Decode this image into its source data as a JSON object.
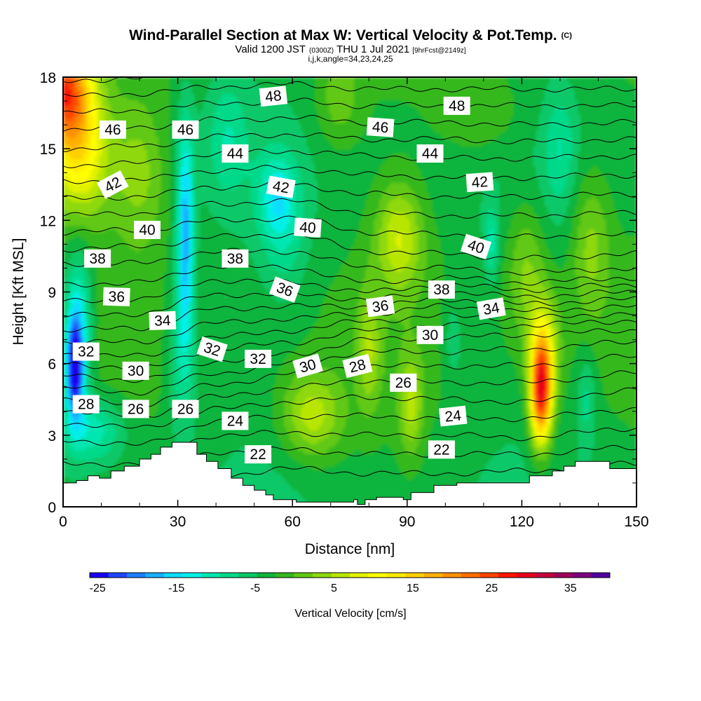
{
  "figure": {
    "title": "Wind-Parallel Section at Max W: Vertical Velocity & Pot.Temp.",
    "title_mark": "(C)",
    "valid_prefix": "Valid 1200 JST",
    "valid_utc": "(0300Z)",
    "valid_date": "THU 1 Jul 2021",
    "forecast_tag": "[9hrFcst@2149z]",
    "index_line": "i,j,k,angle=34,23,24,25"
  },
  "chart_data": {
    "type": "heatmap",
    "title": "Wind-Parallel Section at Max W: Vertical Velocity & Pot.Temp.",
    "xlabel": "Distance [nm]",
    "ylabel": "Height [Kft MSL]",
    "xlim": [
      0,
      150
    ],
    "ylim": [
      0,
      18
    ],
    "x_ticks": [
      0,
      30,
      60,
      90,
      120,
      150
    ],
    "x_tick_labels": [
      "0",
      "30",
      "60",
      "90",
      "120",
      "150"
    ],
    "y_ticks": [
      0,
      3,
      6,
      9,
      12,
      15,
      18
    ],
    "y_tick_labels": [
      "0",
      "3",
      "6",
      "9",
      "12",
      "15",
      "18"
    ],
    "grid": false,
    "colorbar": {
      "title": "Vertical Velocity [cm/s]",
      "placement": "bottom",
      "min": -26,
      "max": 40,
      "step": 3,
      "tick_values": [
        -25,
        -15,
        -5,
        5,
        15,
        25,
        35
      ],
      "tick_labels": [
        "-25",
        "-15",
        "-5",
        "5",
        "15",
        "25",
        "35"
      ],
      "colors": [
        "#1a00f0",
        "#1f44ff",
        "#1c7dff",
        "#18b0ff",
        "#10dcff",
        "#00f0e8",
        "#00e6b0",
        "#00d98a",
        "#08c868",
        "#10b43c",
        "#36b81e",
        "#62c814",
        "#8ed80c",
        "#b8e600",
        "#e2f200",
        "#ffff00",
        "#ffea00",
        "#ffd000",
        "#ffb000",
        "#ff9100",
        "#ff6e00",
        "#ff4400",
        "#ff1400",
        "#e8001c",
        "#c4003c",
        "#a0005a",
        "#7c0080",
        "#5000a0"
      ]
    },
    "vertical_velocity_features": [
      {
        "x": 0,
        "y": 17.6,
        "w": 32,
        "sx": 7,
        "sy": 2.2
      },
      {
        "x": 4,
        "y": 14.8,
        "w": 20,
        "sx": 8,
        "sy": 2.8
      },
      {
        "x": 20,
        "y": 14.0,
        "w": 8,
        "sx": 7,
        "sy": 3.0
      },
      {
        "x": 3,
        "y": 5.8,
        "w": -26,
        "sx": 2.2,
        "sy": 2.0
      },
      {
        "x": 4,
        "y": 7.5,
        "w": -14,
        "sx": 3.5,
        "sy": 3.2
      },
      {
        "x": 8,
        "y": 3.2,
        "w": -10,
        "sx": 8,
        "sy": 1.4
      },
      {
        "x": 32,
        "y": 11.5,
        "w": -18,
        "sx": 2.2,
        "sy": 4.5
      },
      {
        "x": 31,
        "y": 6.5,
        "w": -8,
        "sx": 4,
        "sy": 3.5
      },
      {
        "x": 56,
        "y": 13.0,
        "w": -10,
        "sx": 5,
        "sy": 1.8
      },
      {
        "x": 58,
        "y": 11.0,
        "w": -5,
        "sx": 6,
        "sy": 2.5
      },
      {
        "x": 43,
        "y": 15.5,
        "w": -6,
        "sx": 5,
        "sy": 2.5
      },
      {
        "x": 65,
        "y": 3.8,
        "w": 12,
        "sx": 8,
        "sy": 1.8
      },
      {
        "x": 80,
        "y": 6.5,
        "w": 8,
        "sx": 3,
        "sy": 2.5
      },
      {
        "x": 88,
        "y": 11.3,
        "w": 12,
        "sx": 6,
        "sy": 2.2
      },
      {
        "x": 91,
        "y": 4.2,
        "w": 10,
        "sx": 3,
        "sy": 2.0
      },
      {
        "x": 125,
        "y": 4.8,
        "w": 36,
        "sx": 2.8,
        "sy": 2.2
      },
      {
        "x": 126,
        "y": 6.5,
        "w": 12,
        "sx": 4,
        "sy": 2.5
      },
      {
        "x": 121,
        "y": 10.0,
        "w": 8,
        "sx": 5,
        "sy": 3.0
      },
      {
        "x": 138,
        "y": 11.0,
        "w": 8,
        "sx": 5,
        "sy": 3.0
      },
      {
        "x": 110,
        "y": 16.5,
        "w": 5,
        "sx": 12,
        "sy": 2.0
      },
      {
        "x": 72,
        "y": 17.0,
        "w": 6,
        "sx": 6,
        "sy": 2.0
      },
      {
        "x": 130,
        "y": 15.0,
        "w": -6,
        "sx": 4,
        "sy": 2.5
      },
      {
        "x": 112,
        "y": 11.0,
        "w": -8,
        "sx": 1.8,
        "sy": 1.6
      },
      {
        "x": 137,
        "y": 4.5,
        "w": -6,
        "sx": 2.5,
        "sy": 2.0
      },
      {
        "x": 102,
        "y": 7.0,
        "w": -5,
        "sx": 3,
        "sy": 2.0
      }
    ],
    "theta_contours": {
      "levels": [
        22,
        23,
        24,
        25,
        26,
        27,
        28,
        29,
        30,
        31,
        32,
        33,
        34,
        35,
        36,
        37,
        38,
        39,
        40,
        41,
        42,
        43,
        44,
        45,
        46,
        47,
        48,
        49,
        50
      ],
      "columns": [
        {
          "x": 0,
          "heights": [
            0,
            0.8,
            1.8,
            2.8,
            3.5,
            4.0,
            4.5,
            5.0,
            5.5,
            6.0,
            6.4,
            6.9,
            7.4,
            8.0,
            8.6,
            9.3,
            10.2,
            10.8,
            11.5,
            12.2,
            12.9,
            13.6,
            14.3,
            15.0,
            15.8,
            16.5,
            17.2,
            17.8,
            18.6
          ]
        },
        {
          "x": 20,
          "heights": [
            0,
            0.8,
            1.8,
            2.6,
            3.3,
            3.8,
            4.3,
            4.8,
            5.3,
            5.8,
            6.3,
            6.9,
            7.5,
            8.1,
            8.7,
            9.4,
            10.2,
            10.9,
            11.6,
            12.3,
            13.0,
            13.7,
            14.4,
            15.1,
            15.9,
            16.6,
            17.3,
            18.0,
            18.7
          ]
        },
        {
          "x": 40,
          "heights": [
            1.3,
            2.3,
            3.0,
            3.6,
            4.1,
            4.6,
            5.1,
            5.6,
            6.1,
            6.6,
            7.1,
            7.7,
            8.3,
            8.9,
            9.5,
            10.1,
            10.7,
            11.3,
            12.0,
            12.7,
            13.4,
            14.1,
            14.8,
            15.5,
            16.2,
            16.9,
            17.6,
            18.3,
            19.0
          ]
        },
        {
          "x": 60,
          "heights": [
            1.6,
            2.4,
            3.1,
            3.8,
            4.4,
            5.0,
            5.6,
            6.0,
            6.4,
            6.9,
            7.4,
            7.9,
            8.4,
            8.9,
            9.4,
            10.0,
            10.7,
            11.4,
            12.1,
            12.8,
            13.5,
            14.2,
            14.9,
            15.6,
            16.3,
            17.0,
            17.7,
            18.4,
            19.1
          ]
        },
        {
          "x": 80,
          "heights": [
            1.4,
            2.2,
            3.0,
            3.8,
            4.6,
            5.3,
            5.9,
            6.5,
            7.0,
            7.4,
            7.8,
            8.1,
            8.4,
            8.7,
            9.0,
            9.4,
            10.0,
            10.7,
            11.5,
            12.3,
            13.1,
            13.9,
            14.7,
            15.4,
            16.1,
            16.8,
            17.5,
            18.2,
            18.9
          ]
        },
        {
          "x": 100,
          "heights": [
            1.4,
            2.2,
            3.0,
            3.7,
            4.5,
            5.2,
            5.9,
            6.5,
            7.1,
            7.6,
            8.0,
            8.4,
            8.7,
            9.0,
            9.3,
            9.6,
            10.0,
            10.6,
            11.4,
            12.2,
            13.0,
            13.8,
            14.6,
            15.4,
            16.1,
            16.8,
            17.5,
            18.2,
            18.9
          ]
        },
        {
          "x": 120,
          "heights": [
            1.5,
            2.2,
            2.9,
            3.7,
            4.4,
            5.2,
            5.9,
            6.6,
            7.2,
            7.6,
            7.9,
            8.2,
            8.5,
            8.8,
            9.1,
            9.4,
            9.8,
            10.4,
            11.3,
            12.2,
            13.0,
            13.8,
            14.6,
            15.3,
            16.0,
            16.8,
            17.5,
            18.2,
            18.9
          ]
        },
        {
          "x": 150,
          "heights": [
            1.8,
            2.5,
            3.3,
            4.1,
            4.9,
            5.6,
            6.3,
            6.9,
            7.4,
            7.8,
            8.1,
            8.4,
            8.7,
            9.0,
            9.3,
            9.6,
            10.0,
            10.6,
            11.4,
            12.3,
            13.1,
            13.9,
            14.7,
            15.4,
            16.1,
            16.8,
            17.5,
            18.2,
            18.9
          ]
        }
      ],
      "labels": [
        {
          "text": "48",
          "x": 55,
          "y": 17.2,
          "angle": -6
        },
        {
          "text": "48",
          "x": 103,
          "y": 16.8,
          "angle": 0
        },
        {
          "text": "46",
          "x": 13,
          "y": 15.8,
          "angle": 0
        },
        {
          "text": "46",
          "x": 32,
          "y": 15.8,
          "angle": 0
        },
        {
          "text": "46",
          "x": 83,
          "y": 15.9,
          "angle": 4
        },
        {
          "text": "44",
          "x": 45,
          "y": 14.8,
          "angle": 0
        },
        {
          "text": "44",
          "x": 96,
          "y": 14.8,
          "angle": 0
        },
        {
          "text": "42",
          "x": 13,
          "y": 13.5,
          "angle": -28
        },
        {
          "text": "42",
          "x": 57,
          "y": 13.4,
          "angle": 10
        },
        {
          "text": "42",
          "x": 109,
          "y": 13.6,
          "angle": -4
        },
        {
          "text": "40",
          "x": 22,
          "y": 11.6,
          "angle": 0
        },
        {
          "text": "40",
          "x": 64,
          "y": 11.7,
          "angle": 4
        },
        {
          "text": "40",
          "x": 108,
          "y": 10.9,
          "angle": 18
        },
        {
          "text": "38",
          "x": 9,
          "y": 10.4,
          "angle": 0
        },
        {
          "text": "38",
          "x": 45,
          "y": 10.4,
          "angle": 0
        },
        {
          "text": "38",
          "x": 99,
          "y": 9.1,
          "angle": 0
        },
        {
          "text": "36",
          "x": 14,
          "y": 8.8,
          "angle": 2
        },
        {
          "text": "36",
          "x": 58,
          "y": 9.1,
          "angle": 20
        },
        {
          "text": "36",
          "x": 83,
          "y": 8.4,
          "angle": -8
        },
        {
          "text": "34",
          "x": 26,
          "y": 7.8,
          "angle": -2
        },
        {
          "text": "34",
          "x": 112,
          "y": 8.3,
          "angle": -10
        },
        {
          "text": "32",
          "x": 6,
          "y": 6.5,
          "angle": 0
        },
        {
          "text": "32",
          "x": 39,
          "y": 6.6,
          "angle": 18
        },
        {
          "text": "32",
          "x": 51,
          "y": 6.2,
          "angle": 0
        },
        {
          "text": "30",
          "x": 19,
          "y": 5.7,
          "angle": 0
        },
        {
          "text": "30",
          "x": 64,
          "y": 5.9,
          "angle": -16
        },
        {
          "text": "30",
          "x": 96,
          "y": 7.2,
          "angle": 0
        },
        {
          "text": "28",
          "x": 6,
          "y": 4.3,
          "angle": 0
        },
        {
          "text": "28",
          "x": 77,
          "y": 5.9,
          "angle": -14
        },
        {
          "text": "26",
          "x": 19,
          "y": 4.1,
          "angle": 0
        },
        {
          "text": "26",
          "x": 32,
          "y": 4.1,
          "angle": 0
        },
        {
          "text": "26",
          "x": 89,
          "y": 5.2,
          "angle": 0
        },
        {
          "text": "24",
          "x": 45,
          "y": 3.6,
          "angle": 0
        },
        {
          "text": "24",
          "x": 102,
          "y": 3.8,
          "angle": -6
        },
        {
          "text": "22",
          "x": 51,
          "y": 2.2,
          "angle": 0
        },
        {
          "text": "22",
          "x": 99,
          "y": 2.4,
          "angle": 0
        }
      ]
    },
    "terrain": [
      [
        0,
        1.0
      ],
      [
        3.5,
        1.0
      ],
      [
        3.5,
        1.1
      ],
      [
        6.5,
        1.1
      ],
      [
        6.5,
        1.3
      ],
      [
        9.5,
        1.3
      ],
      [
        9.5,
        1.2
      ],
      [
        12.5,
        1.2
      ],
      [
        12.5,
        1.5
      ],
      [
        16,
        1.5
      ],
      [
        16,
        1.7
      ],
      [
        20,
        1.7
      ],
      [
        20,
        2.0
      ],
      [
        23,
        2.0
      ],
      [
        23,
        2.2
      ],
      [
        25.5,
        2.2
      ],
      [
        25.5,
        2.5
      ],
      [
        28.5,
        2.5
      ],
      [
        28.5,
        2.7
      ],
      [
        35,
        2.7
      ],
      [
        35,
        2.2
      ],
      [
        37.5,
        2.2
      ],
      [
        37.5,
        1.9
      ],
      [
        40.5,
        1.9
      ],
      [
        40.5,
        1.6
      ],
      [
        44,
        1.6
      ],
      [
        44,
        1.2
      ],
      [
        47,
        1.2
      ],
      [
        47,
        0.9
      ],
      [
        50,
        0.9
      ],
      [
        50,
        0.7
      ],
      [
        53,
        0.7
      ],
      [
        53,
        0.5
      ],
      [
        55,
        0.5
      ],
      [
        55,
        0.3
      ],
      [
        61,
        0.3
      ],
      [
        61,
        0.2
      ],
      [
        76,
        0.2
      ],
      [
        76,
        0.3
      ],
      [
        77,
        0.3
      ],
      [
        77,
        0.1
      ],
      [
        79,
        0.1
      ],
      [
        79,
        0.3
      ],
      [
        82,
        0.3
      ],
      [
        82,
        0.4
      ],
      [
        89,
        0.4
      ],
      [
        89,
        0.3
      ],
      [
        91,
        0.3
      ],
      [
        91,
        0.6
      ],
      [
        97,
        0.6
      ],
      [
        97,
        0.9
      ],
      [
        103,
        0.9
      ],
      [
        103,
        1.0
      ],
      [
        122,
        1.0
      ],
      [
        122,
        1.3
      ],
      [
        128,
        1.3
      ],
      [
        128,
        1.5
      ],
      [
        131,
        1.5
      ],
      [
        131,
        1.7
      ],
      [
        134,
        1.7
      ],
      [
        134,
        1.9
      ],
      [
        143,
        1.9
      ],
      [
        143,
        1.6
      ],
      [
        150,
        1.6
      ],
      [
        150,
        0
      ],
      [
        0,
        0
      ]
    ]
  }
}
